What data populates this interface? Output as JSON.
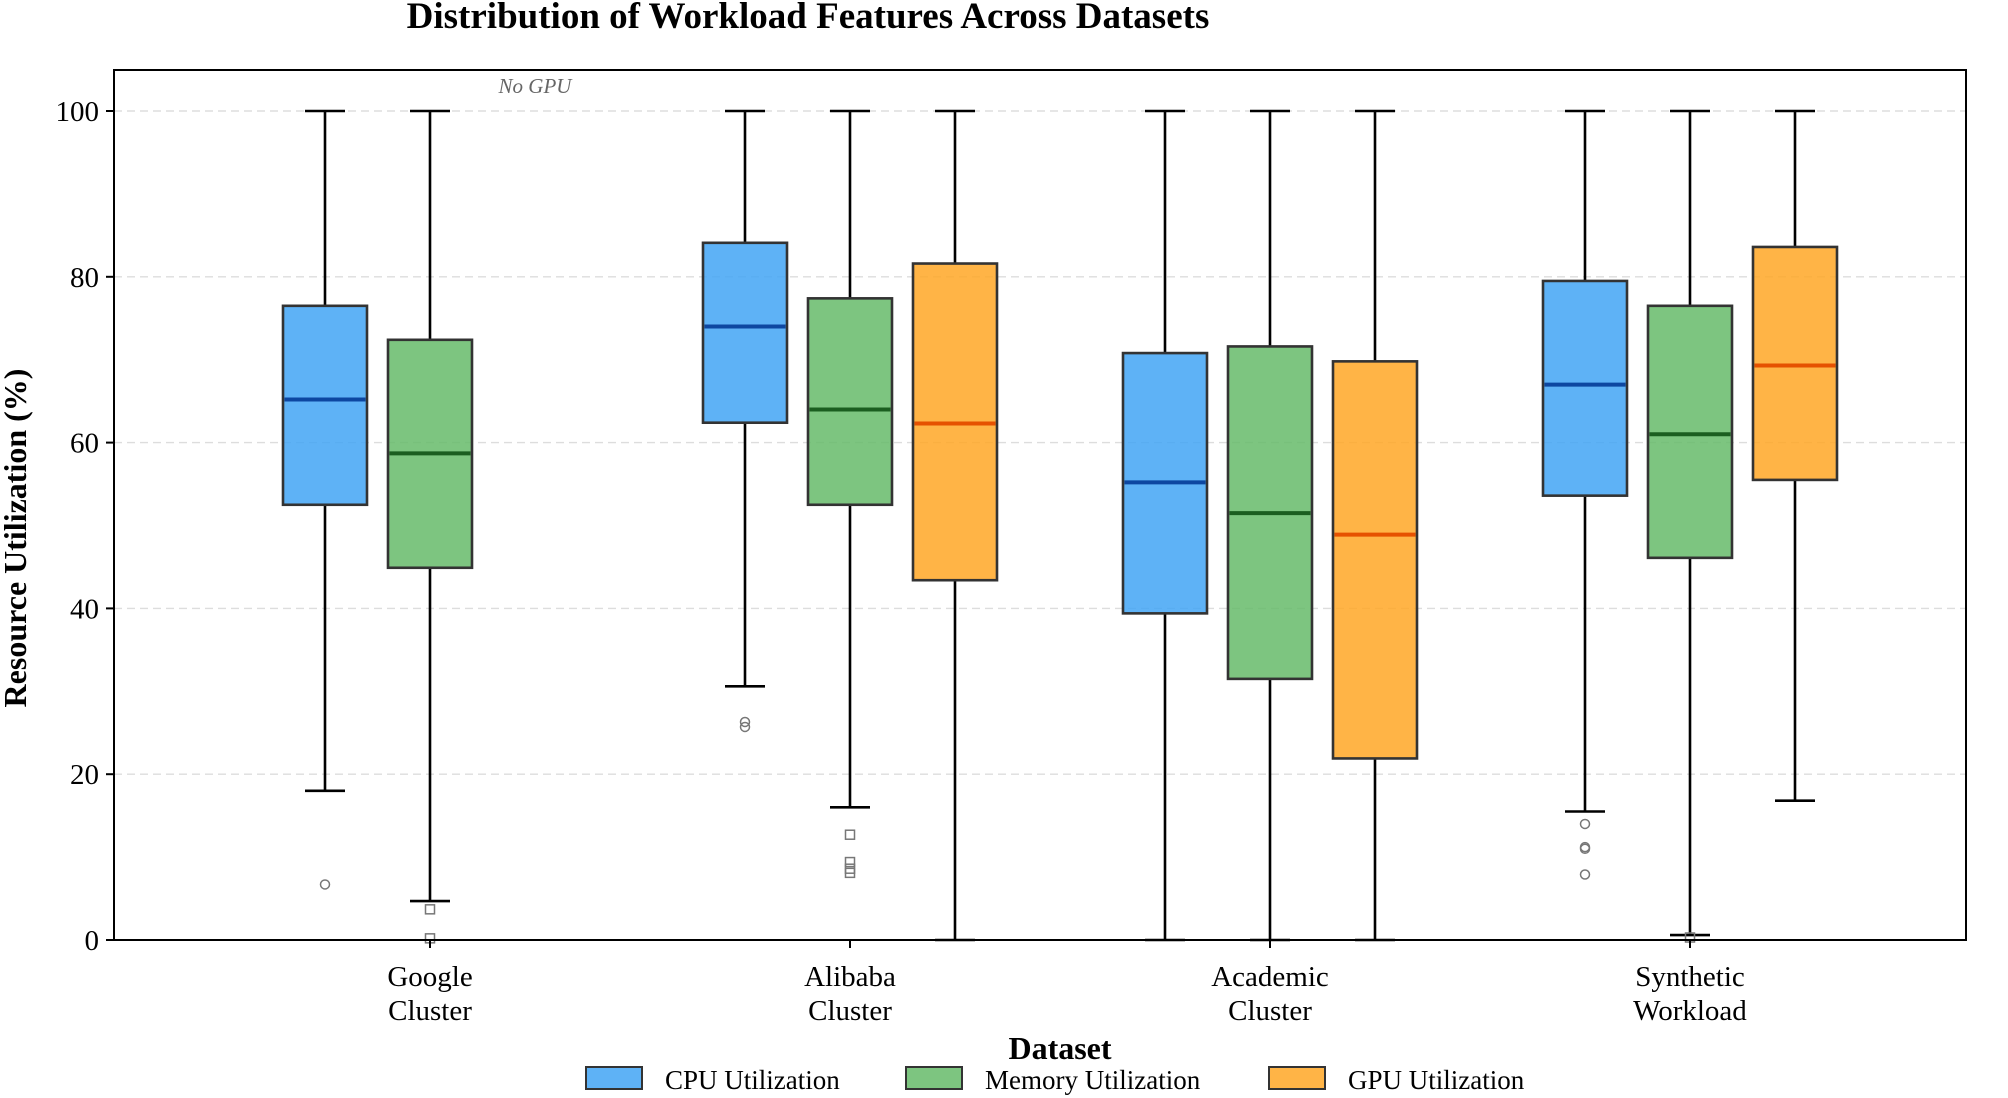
{
  "chart_data": {
    "type": "box",
    "title": "Distribution of Workload Features Across Datasets",
    "xlabel": "Dataset",
    "ylabel": "Resource Utilization (%)",
    "ylim": [
      0,
      105
    ],
    "yticks": [
      0,
      20,
      40,
      60,
      80,
      100
    ],
    "grid": "y-dashed",
    "legend_position": "bottom-center",
    "categories": [
      [
        "Google",
        "Cluster"
      ],
      [
        "Alibaba",
        "Cluster"
      ],
      [
        "Academic",
        "Cluster"
      ],
      [
        "Synthetic",
        "Workload"
      ]
    ],
    "series": [
      {
        "name": "CPU Utilization",
        "fill": "#42A5F5",
        "median_color": "#0D47A1",
        "outlier_marker": "circle",
        "boxes": [
          {
            "whislo": 18,
            "q1": 52.5,
            "med": 65.2,
            "q3": 76.5,
            "whishi": 100,
            "fliers": [
              6.7
            ]
          },
          {
            "whislo": 30.6,
            "q1": 62.4,
            "med": 74.0,
            "q3": 84.1,
            "whishi": 100,
            "fliers": [
              26.3,
              25.7
            ]
          },
          {
            "whislo": 0,
            "q1": 39.4,
            "med": 55.2,
            "q3": 70.8,
            "whishi": 100,
            "fliers": []
          },
          {
            "whislo": 15.5,
            "q1": 53.6,
            "med": 67.0,
            "q3": 79.5,
            "whishi": 100,
            "fliers": [
              14.0,
              11.2,
              11.0,
              7.9
            ]
          }
        ]
      },
      {
        "name": "Memory Utilization",
        "fill": "#66BB6A",
        "median_color": "#1B5E20",
        "outlier_marker": "square",
        "boxes": [
          {
            "whislo": 4.7,
            "q1": 44.9,
            "med": 58.7,
            "q3": 72.4,
            "whishi": 100,
            "fliers": [
              3.7,
              0.2
            ]
          },
          {
            "whislo": 16.0,
            "q1": 52.5,
            "med": 64.0,
            "q3": 77.4,
            "whishi": 100,
            "fliers": [
              12.7,
              9.4,
              8.6,
              8.1
            ]
          },
          {
            "whislo": 0,
            "q1": 31.5,
            "med": 51.5,
            "q3": 71.6,
            "whishi": 100,
            "fliers": []
          },
          {
            "whislo": 0.6,
            "q1": 46.1,
            "med": 61.0,
            "q3": 76.5,
            "whishi": 100,
            "fliers": [
              0.3
            ]
          }
        ]
      },
      {
        "name": "GPU Utilization",
        "fill": "#FFA726",
        "median_color": "#E65100",
        "outlier_marker": "triangle",
        "boxes": [
          null,
          {
            "whislo": 0,
            "q1": 43.4,
            "med": 62.3,
            "q3": 81.6,
            "whishi": 100,
            "fliers": []
          },
          {
            "whislo": 0,
            "q1": 21.9,
            "med": 48.9,
            "q3": 69.8,
            "whishi": 100,
            "fliers": []
          },
          {
            "whislo": 16.8,
            "q1": 55.5,
            "med": 69.3,
            "q3": 83.6,
            "whishi": 100,
            "fliers": []
          }
        ]
      }
    ],
    "annotations": [
      {
        "text": "No GPU",
        "category_index": 0,
        "y": 103
      }
    ]
  }
}
